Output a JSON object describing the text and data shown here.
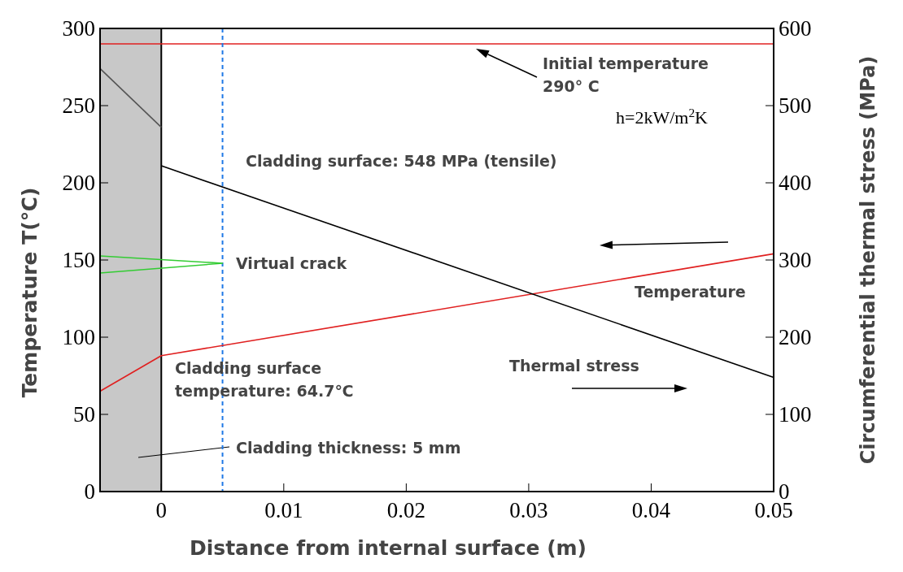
{
  "chart_data": {
    "type": "line",
    "xlabel": "Distance from internal surface   (m)",
    "ylabel": "Temperature   T(℃)",
    "y2label": "Circumferential thermal stress   (MPa)",
    "xlim": [
      -0.005,
      0.05
    ],
    "xticks": [
      0,
      0.01,
      0.02,
      0.03,
      0.04,
      0.05
    ],
    "ylim": [
      0,
      300
    ],
    "yticks": [
      0,
      50,
      100,
      150,
      200,
      250,
      300
    ],
    "y2lim": [
      0,
      600
    ],
    "y2ticks": [
      0,
      100,
      200,
      300,
      400,
      500,
      600
    ],
    "series": [
      {
        "name": "Temperature",
        "color": "#e02020",
        "x": [
          -0.005,
          0,
          0.05
        ],
        "values": [
          65,
          88,
          154
        ]
      },
      {
        "color": "#555555",
        "axis": "y2",
        "x": [
          -0.005,
          0
        ],
        "values": [
          548,
          472
        ]
      },
      {
        "name": "Thermal stress",
        "color": "#000000",
        "axis": "y2",
        "x": [
          0,
          0.05
        ],
        "values": [
          422,
          148
        ]
      }
    ],
    "ref_lines": [
      {
        "axis": "y",
        "value": 290,
        "color": "#e02020",
        "line_style": "solid"
      },
      {
        "axis": "x",
        "value": 0.005,
        "color": "#1e78e6",
        "line_style": "dashed"
      }
    ],
    "bands": [
      {
        "axis": "x",
        "from": -0.005,
        "to": 0,
        "color": "#c8c8c8",
        "label": "Cladding thickness: 5 mm"
      }
    ],
    "annotations": [
      "Initial temperature\n290°  C",
      "h=2kW/m$^{2}$K",
      "Cladding surface: 548 MPa (tensile)",
      "Virtual crack",
      "Cladding surface\ntemperature: 64.7℃"
    ],
    "marker": "none"
  }
}
